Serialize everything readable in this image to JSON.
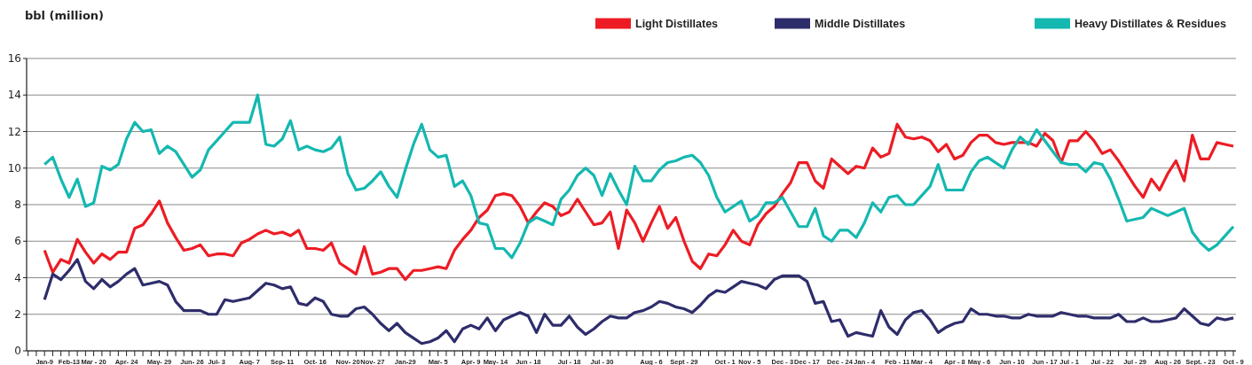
{
  "chart_data": {
    "type": "line",
    "ylabel": "bbl (million)",
    "categories": [
      null,
      null,
      "Jan-9",
      null,
      null,
      "Feb-13",
      null,
      null,
      "Mar - 20",
      null,
      null,
      null,
      "Apr- 24",
      null,
      null,
      null,
      "May- 29",
      null,
      null,
      null,
      "Jun- 26",
      null,
      null,
      "Jul- 3",
      null,
      null,
      null,
      "Aug- 7",
      null,
      null,
      null,
      "Sep- 11",
      null,
      null,
      null,
      "Oct- 16",
      null,
      null,
      null,
      "Nov- 20",
      null,
      null,
      "Nov- 27",
      null,
      null,
      null,
      "Jan-29",
      null,
      null,
      null,
      "Mar- 5",
      null,
      null,
      null,
      "Apr- 9",
      null,
      null,
      "May- 14",
      null,
      null,
      null,
      "Jun - 18",
      null,
      null,
      null,
      null,
      "Jul - 18",
      null,
      null,
      null,
      "Jul - 30",
      null,
      null,
      null,
      null,
      null,
      "Aug - 6",
      null,
      null,
      null,
      "Sept - 29",
      null,
      null,
      null,
      null,
      "Oct - 1",
      null,
      null,
      "Nov - 5",
      null,
      null,
      null,
      "Dec - 3",
      null,
      null,
      "Dec - 17",
      null,
      null,
      null,
      "Dec - 24",
      null,
      null,
      "Jan - 4",
      null,
      null,
      null,
      "Feb - 11",
      null,
      null,
      "Mar - 4",
      null,
      null,
      null,
      "Apr - 8",
      null,
      null,
      "May - 6",
      null,
      null,
      null,
      "Jun - 10",
      null,
      null,
      null,
      "Jun - 17",
      null,
      null,
      "Jul - 1",
      null,
      null,
      null,
      "Jul - 22",
      null,
      null,
      null,
      "Jul - 29",
      null,
      null,
      null,
      "Aug - 26",
      null,
      null,
      null,
      "Sept. - 23",
      null,
      null,
      null,
      "Oct - 9"
    ],
    "series": [
      {
        "name": "Light Distillates",
        "color": "#ed1c24",
        "values": [
          null,
          null,
          5.5,
          4.3,
          5.0,
          4.8,
          6.1,
          5.4,
          4.8,
          5.3,
          5.0,
          5.4,
          5.4,
          6.7,
          6.9,
          7.5,
          8.2,
          7.0,
          6.2,
          5.5,
          5.6,
          5.8,
          5.2,
          5.3,
          5.3,
          5.2,
          5.9,
          6.1,
          6.4,
          6.6,
          6.4,
          6.5,
          6.3,
          6.6,
          5.6,
          5.6,
          5.5,
          5.9,
          4.8,
          4.5,
          4.2,
          5.7,
          4.2,
          4.3,
          4.5,
          4.5,
          3.9,
          4.4,
          4.4,
          4.5,
          4.6,
          4.5,
          5.5,
          6.1,
          6.6,
          7.3,
          7.7,
          8.5,
          8.6,
          8.5,
          7.9,
          7.0,
          7.6,
          8.1,
          7.9,
          7.4,
          7.6,
          8.3,
          7.6,
          6.9,
          7.0,
          7.6,
          5.6,
          7.7,
          7.0,
          6.0,
          7.0,
          7.9,
          6.7,
          7.3,
          6.0,
          4.9,
          4.5,
          5.3,
          5.2,
          5.8,
          6.6,
          6.0,
          5.8,
          6.9,
          7.5,
          7.9,
          8.6,
          9.2,
          10.3,
          10.3,
          9.3,
          8.9,
          10.5,
          10.1,
          9.7,
          10.1,
          10.0,
          11.1,
          10.6,
          10.8,
          12.4,
          11.7,
          11.6,
          11.7,
          11.5,
          10.9,
          11.3,
          10.5,
          10.7,
          11.4,
          11.8,
          11.8,
          11.4,
          11.3,
          11.4,
          11.4,
          11.4,
          11.2,
          11.9,
          11.5,
          10.3,
          11.5,
          11.5,
          12.0,
          11.5,
          10.8,
          11.0,
          10.4,
          9.7,
          9.0,
          8.4,
          9.4,
          8.8,
          9.7,
          10.4,
          9.3,
          11.8,
          10.5,
          10.5,
          11.4,
          11.3,
          11.2
        ]
      },
      {
        "name": "Middle Distillates",
        "color": "#2e2d6b",
        "values": [
          null,
          null,
          2.8,
          4.2,
          3.9,
          4.4,
          5.0,
          3.8,
          3.4,
          3.9,
          3.5,
          3.8,
          4.2,
          4.5,
          3.6,
          3.7,
          3.8,
          3.6,
          2.7,
          2.2,
          2.2,
          2.2,
          2.0,
          2.0,
          2.8,
          2.7,
          2.8,
          2.9,
          3.3,
          3.7,
          3.6,
          3.4,
          3.5,
          2.6,
          2.5,
          2.9,
          2.7,
          2.0,
          1.9,
          1.9,
          2.3,
          2.4,
          2.0,
          1.5,
          1.1,
          1.5,
          1.0,
          0.7,
          0.4,
          0.5,
          0.7,
          1.1,
          0.5,
          1.2,
          1.4,
          1.2,
          1.8,
          1.1,
          1.7,
          1.9,
          2.1,
          1.9,
          1.0,
          2.0,
          1.4,
          1.4,
          1.9,
          1.3,
          0.9,
          1.2,
          1.6,
          1.9,
          1.8,
          1.8,
          2.1,
          2.2,
          2.4,
          2.7,
          2.6,
          2.4,
          2.3,
          2.1,
          2.5,
          3.0,
          3.3,
          3.2,
          3.5,
          3.8,
          3.7,
          3.6,
          3.4,
          3.9,
          4.1,
          4.1,
          4.1,
          3.8,
          2.6,
          2.7,
          1.6,
          1.7,
          0.8,
          1.0,
          0.9,
          0.8,
          2.2,
          1.3,
          0.9,
          1.7,
          2.1,
          2.2,
          1.7,
          1.0,
          1.3,
          1.5,
          1.6,
          2.3,
          2.0,
          2.0,
          1.9,
          1.9,
          1.8,
          1.8,
          2.0,
          1.9,
          1.9,
          1.9,
          2.1,
          2.0,
          1.9,
          1.9,
          1.8,
          1.8,
          1.8,
          2.0,
          1.6,
          1.6,
          1.8,
          1.6,
          1.6,
          1.7,
          1.8,
          2.3,
          1.9,
          1.5,
          1.4,
          1.8,
          1.7,
          1.8
        ]
      },
      {
        "name": "Heavy Distillates & Residues",
        "color": "#14b8b0",
        "values": [
          null,
          null,
          10.2,
          10.6,
          9.4,
          8.4,
          9.4,
          7.9,
          8.1,
          10.1,
          9.9,
          10.2,
          11.6,
          12.5,
          12.0,
          12.1,
          10.8,
          11.2,
          10.9,
          10.2,
          9.5,
          9.9,
          11.0,
          11.5,
          12.0,
          12.5,
          12.5,
          12.5,
          14.0,
          11.3,
          11.2,
          11.6,
          12.6,
          11.0,
          11.2,
          11.0,
          10.9,
          11.1,
          11.7,
          9.7,
          8.8,
          8.9,
          9.3,
          9.8,
          9.0,
          8.4,
          9.9,
          11.3,
          12.4,
          11.0,
          10.6,
          10.7,
          9.0,
          9.3,
          8.5,
          7.0,
          6.9,
          5.6,
          5.6,
          5.1,
          5.9,
          7.0,
          7.3,
          7.1,
          6.9,
          8.3,
          8.8,
          9.6,
          10.0,
          9.6,
          8.5,
          9.7,
          8.8,
          8.0,
          10.1,
          9.3,
          9.3,
          9.9,
          10.3,
          10.4,
          10.6,
          10.7,
          10.3,
          9.6,
          8.4,
          7.6,
          7.9,
          8.2,
          7.1,
          7.4,
          8.1,
          8.1,
          8.4,
          7.6,
          6.8,
          6.8,
          7.8,
          6.3,
          6.0,
          6.6,
          6.6,
          6.2,
          7.0,
          8.1,
          7.6,
          8.4,
          8.5,
          8.0,
          8.0,
          8.5,
          9.0,
          10.2,
          8.8,
          8.8,
          8.8,
          9.8,
          10.4,
          10.6,
          10.3,
          10.0,
          11.0,
          11.7,
          11.3,
          12.1,
          11.5,
          10.9,
          10.3,
          10.2,
          10.2,
          9.8,
          10.3,
          10.2,
          9.4,
          8.3,
          7.1,
          7.2,
          7.3,
          7.8,
          7.6,
          7.4,
          7.6,
          7.8,
          6.5,
          5.9,
          5.5,
          5.8,
          6.3,
          6.8
        ]
      }
    ],
    "ylim": [
      0,
      16
    ],
    "yticks": [
      0,
      2,
      4,
      6,
      8,
      10,
      12,
      14,
      16
    ],
    "grid": "y",
    "legend": "top right",
    "line_style": "solid",
    "marker": "none"
  }
}
